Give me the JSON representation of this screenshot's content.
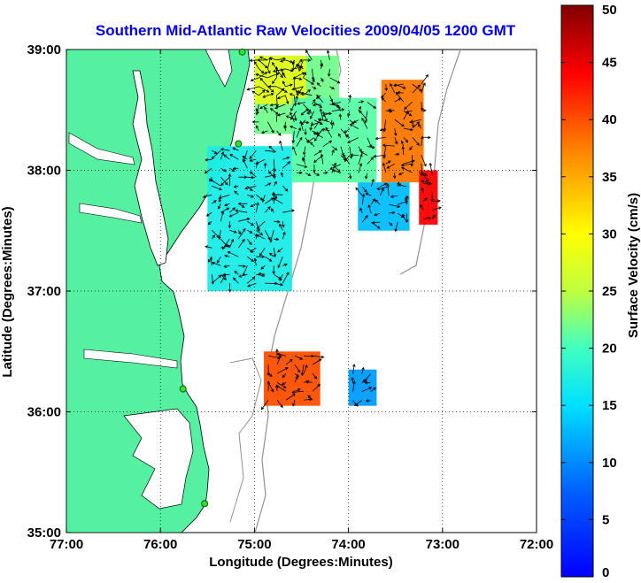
{
  "chart_data": {
    "type": "heatmap",
    "title": "Southern Mid-Atlantic Raw Velocities 2009/04/05 1200 GMT",
    "xlabel": "Longitude (Degrees:Minutes)",
    "ylabel": "Latitude (Degrees:Minutes)",
    "colorbar_label": "Surface Velocity (cm/s)",
    "x_ticks": [
      {
        "value": -77,
        "label": "77:00"
      },
      {
        "value": -76,
        "label": "76:00"
      },
      {
        "value": -75,
        "label": "75:00"
      },
      {
        "value": -74,
        "label": "74:00"
      },
      {
        "value": -73,
        "label": "73:00"
      },
      {
        "value": -72,
        "label": "72:00"
      }
    ],
    "y_ticks": [
      {
        "value": 35,
        "label": "35:00"
      },
      {
        "value": 36,
        "label": "36:00"
      },
      {
        "value": 37,
        "label": "37:00"
      },
      {
        "value": 38,
        "label": "38:00"
      },
      {
        "value": 39,
        "label": "39:00"
      }
    ],
    "xlim": [
      -77,
      -72
    ],
    "ylim": [
      35,
      39
    ],
    "colorbar_ticks": [
      0,
      5,
      10,
      15,
      20,
      25,
      30,
      35,
      40,
      45,
      50
    ],
    "colorbar_range": [
      0,
      50
    ],
    "grid": true,
    "stations": [
      {
        "lon": -75.13,
        "lat": 38.98
      },
      {
        "lon": -75.17,
        "lat": 38.22
      },
      {
        "lon": -75.76,
        "lat": 36.19
      },
      {
        "lon": -75.53,
        "lat": 35.24
      }
    ],
    "velocity_regions": [
      {
        "lon_min": -75.0,
        "lon_max": -74.1,
        "lat_min": 38.3,
        "lat_max": 38.95,
        "speed": 22
      },
      {
        "lon_min": -75.0,
        "lon_max": -74.45,
        "lat_min": 38.55,
        "lat_max": 38.95,
        "speed": 28
      },
      {
        "lon_min": -75.5,
        "lon_max": -74.6,
        "lat_min": 37.0,
        "lat_max": 38.2,
        "speed": 17
      },
      {
        "lon_min": -74.6,
        "lon_max": -73.7,
        "lat_min": 37.9,
        "lat_max": 38.6,
        "speed": 21
      },
      {
        "lon_min": -73.9,
        "lon_max": -73.35,
        "lat_min": 37.5,
        "lat_max": 37.9,
        "speed": 13
      },
      {
        "lon_min": -73.65,
        "lon_max": -73.2,
        "lat_min": 37.9,
        "lat_max": 38.75,
        "speed": 38
      },
      {
        "lon_min": -73.25,
        "lon_max": -73.05,
        "lat_min": 37.55,
        "lat_max": 38.0,
        "speed": 44
      },
      {
        "lon_min": -74.9,
        "lon_max": -74.3,
        "lat_min": 36.05,
        "lat_max": 36.5,
        "speed": 40
      },
      {
        "lon_min": -74.0,
        "lon_max": -73.7,
        "lat_min": 36.05,
        "lat_max": 36.35,
        "speed": 11
      }
    ]
  }
}
